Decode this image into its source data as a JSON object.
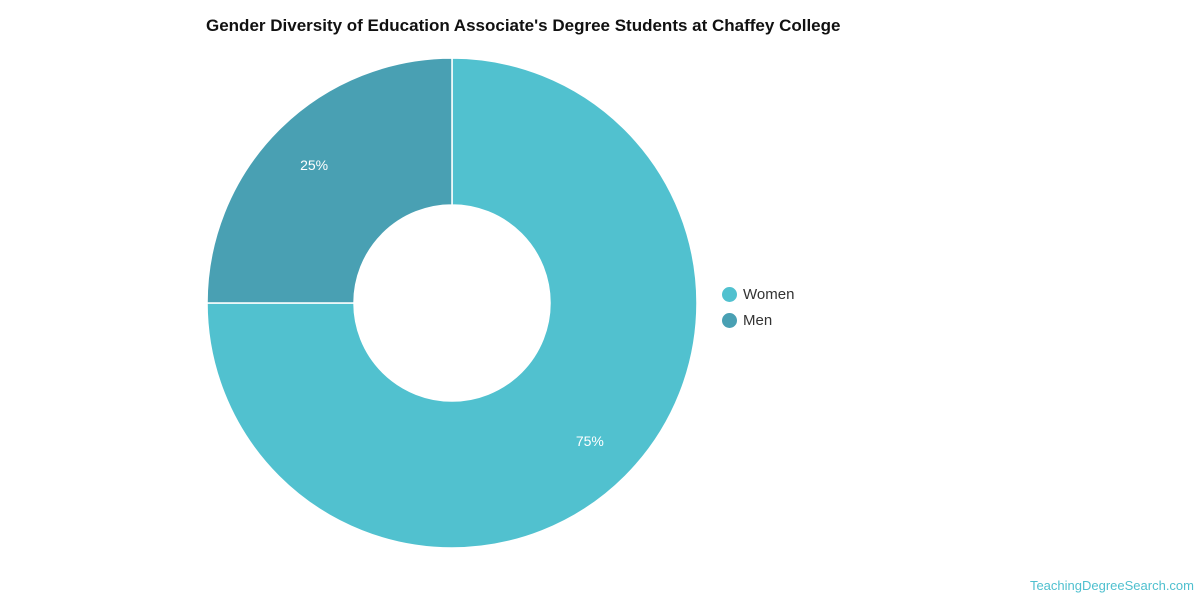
{
  "chart_data": {
    "type": "pie",
    "title": "Gender Diversity of Education Associate's Degree Students at Chaffey College",
    "donut": true,
    "slices": [
      {
        "label": "Women",
        "value": 75,
        "display": "75%",
        "color": "#51c1cf"
      },
      {
        "label": "Men",
        "value": 25,
        "display": "25%",
        "color": "#49a0b3"
      }
    ],
    "legend_position": "right"
  },
  "watermark": "TeachingDegreeSearch.com"
}
